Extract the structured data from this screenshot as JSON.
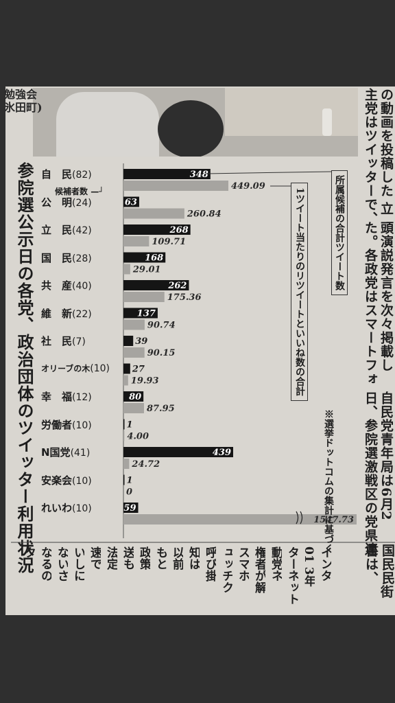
{
  "left_column": [
    "勉強会",
    "氷田町)"
  ],
  "right_columns": [
    "の動画を投稿した",
    "主党はツイッターで、",
    "頭演説発言を次々掲載し",
    "た。各政党はスマートフォ",
    "日、参院選激戦区の党県連",
    "自民党青年局は6月2"
  ],
  "right_column_bits": [
    "立",
    "書は、",
    "街",
    "国民民"
  ],
  "bottom_columns": [
    "インタ",
    "01 3年",
    "ターネット",
    "動党ネ",
    "権者が解",
    "スマホ",
    "ュッチク",
    "呼び掛",
    "知は",
    "以前",
    "もと",
    "政策",
    "送も",
    "法定",
    "速で",
    "いしに",
    "ないさ",
    "なるの",
    "ク"
  ],
  "chart_data": {
    "type": "bar",
    "title": "参院選公示日の各党、政治団体のツイッター利用状況",
    "candidate_label": "候補者数",
    "legend_black": "所属候補の合計ツイート数",
    "legend_gray": "1ツイート当たりのリツイートといいね数の合計",
    "note": "※選挙ドットコムの集計に基づく",
    "categories": [
      {
        "name": "自　民",
        "count": "(82)"
      },
      {
        "name": "公　明",
        "count": "(24)"
      },
      {
        "name": "立　民",
        "count": "(42)"
      },
      {
        "name": "国　民",
        "count": "(28)"
      },
      {
        "name": "共　産",
        "count": "(40)"
      },
      {
        "name": "維　新",
        "count": "(22)"
      },
      {
        "name": "社　民",
        "count": "(7)"
      },
      {
        "name": "オリーブの木",
        "count": "(10)"
      },
      {
        "name": "幸　福",
        "count": "(12)"
      },
      {
        "name": "労働者",
        "count": "(10)"
      },
      {
        "name": "N国党",
        "count": "(41)"
      },
      {
        "name": "安楽会",
        "count": "(10)"
      },
      {
        "name": "れいわ",
        "count": "(10)"
      }
    ],
    "series": [
      {
        "name": "所属候補の合計ツイート数",
        "color": "#151515",
        "values": [
          348,
          63,
          268,
          168,
          262,
          137,
          39,
          27,
          80,
          1,
          439,
          1,
          59
        ],
        "labels": [
          "348",
          "63",
          "268",
          "168",
          "262",
          "137",
          "39",
          "27",
          "80",
          "1",
          "439",
          "1",
          "59"
        ]
      },
      {
        "name": "1ツイート当たりのリツイートといいね数の合計",
        "color": "#a6a4a0",
        "values": [
          449.09,
          260.84,
          109.71,
          29.01,
          175.36,
          90.74,
          90.15,
          19.93,
          87.95,
          4.0,
          24.72,
          0,
          1547.73
        ],
        "labels": [
          "449.09",
          "260.84",
          "109.71",
          "29.01",
          "175.36",
          "90.74",
          "90.15",
          "19.93",
          "87.95",
          "4.00",
          "24.72",
          "0",
          "1547.73"
        ]
      }
    ],
    "broken_axis_category": "れいわ"
  }
}
